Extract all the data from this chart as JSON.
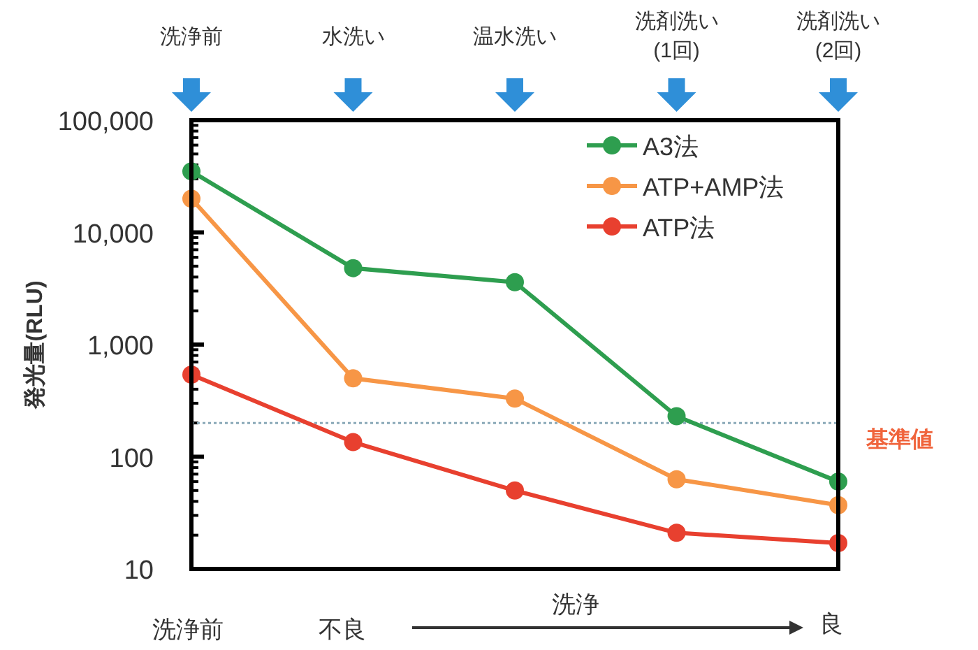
{
  "chart_data": {
    "type": "line",
    "ylabel": "発光量(RLU)",
    "categories": [
      "洗浄前",
      "水洗い",
      "温水洗い",
      "洗剤洗い\n(1回)",
      "洗剤洗い\n(2回)"
    ],
    "series": [
      {
        "name": "A3法",
        "color": "#2e9e4f",
        "values": [
          35000,
          4800,
          3600,
          230,
          60
        ]
      },
      {
        "name": "ATP+AMP法",
        "color": "#f79646",
        "values": [
          20000,
          500,
          330,
          63,
          37
        ]
      },
      {
        "name": "ATP法",
        "color": "#e8402f",
        "values": [
          540,
          135,
          50,
          21,
          17
        ]
      }
    ],
    "log": "y",
    "ylim": [
      10,
      100000
    ],
    "yticks": [
      {
        "value": 10,
        "label": "10"
      },
      {
        "value": 100,
        "label": "100"
      },
      {
        "value": 1000,
        "label": "1,000"
      },
      {
        "value": 10000,
        "label": "10,000"
      },
      {
        "value": 100000,
        "label": "100,000"
      }
    ],
    "ref_lines": [
      {
        "axis": "y",
        "value": 200,
        "label": "基準値",
        "color": "#8aa9b8",
        "line_style": "dotted"
      }
    ],
    "legend": "top right",
    "marker": "circle",
    "line_style": "solid",
    "annotations": [
      "洗浄前",
      "不良",
      "洗浄",
      "良"
    ]
  }
}
